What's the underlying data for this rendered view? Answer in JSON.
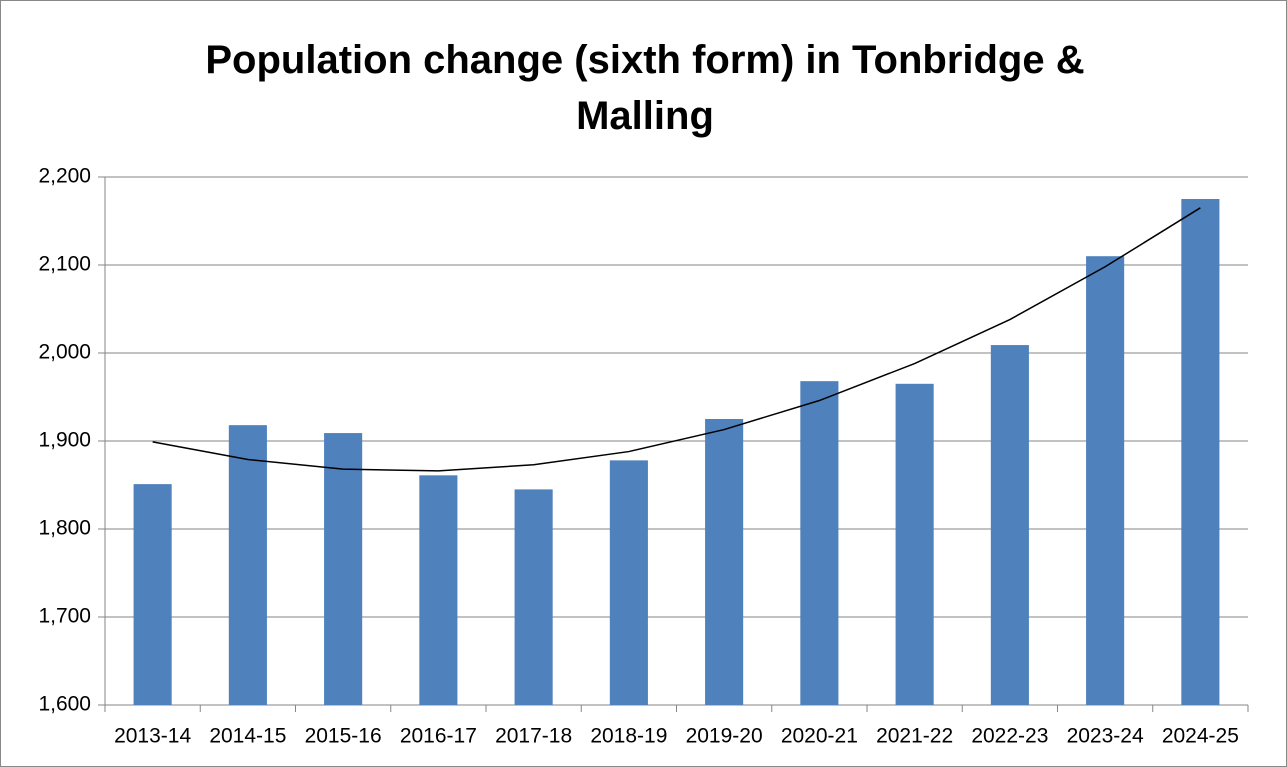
{
  "chart_data": {
    "type": "bar",
    "title": "Population change (sixth form) in Tonbridge & Malling",
    "categories": [
      "2013-14",
      "2014-15",
      "2015-16",
      "2016-17",
      "2017-18",
      "2018-19",
      "2019-20",
      "2020-21",
      "2021-22",
      "2022-23",
      "2023-24",
      "2024-25"
    ],
    "values": [
      1851,
      1918,
      1909,
      1861,
      1845,
      1878,
      1925,
      1968,
      1965,
      2009,
      2110,
      2175
    ],
    "color": "#4f81bd",
    "trendline": {
      "values": [
        1899,
        1879,
        1868,
        1866,
        1873,
        1888,
        1913,
        1946,
        1988,
        2038,
        2098,
        2165
      ],
      "color": "#000000"
    },
    "ylim": [
      1600,
      2200
    ],
    "yticks": [
      {
        "value": 1600,
        "label": "1,600"
      },
      {
        "value": 1700,
        "label": "1,700"
      },
      {
        "value": 1800,
        "label": "1,800"
      },
      {
        "value": 1900,
        "label": "1,900"
      },
      {
        "value": 2000,
        "label": "2,000"
      },
      {
        "value": 2100,
        "label": "2,100"
      },
      {
        "value": 2200,
        "label": "2,200"
      }
    ],
    "grid": true
  }
}
